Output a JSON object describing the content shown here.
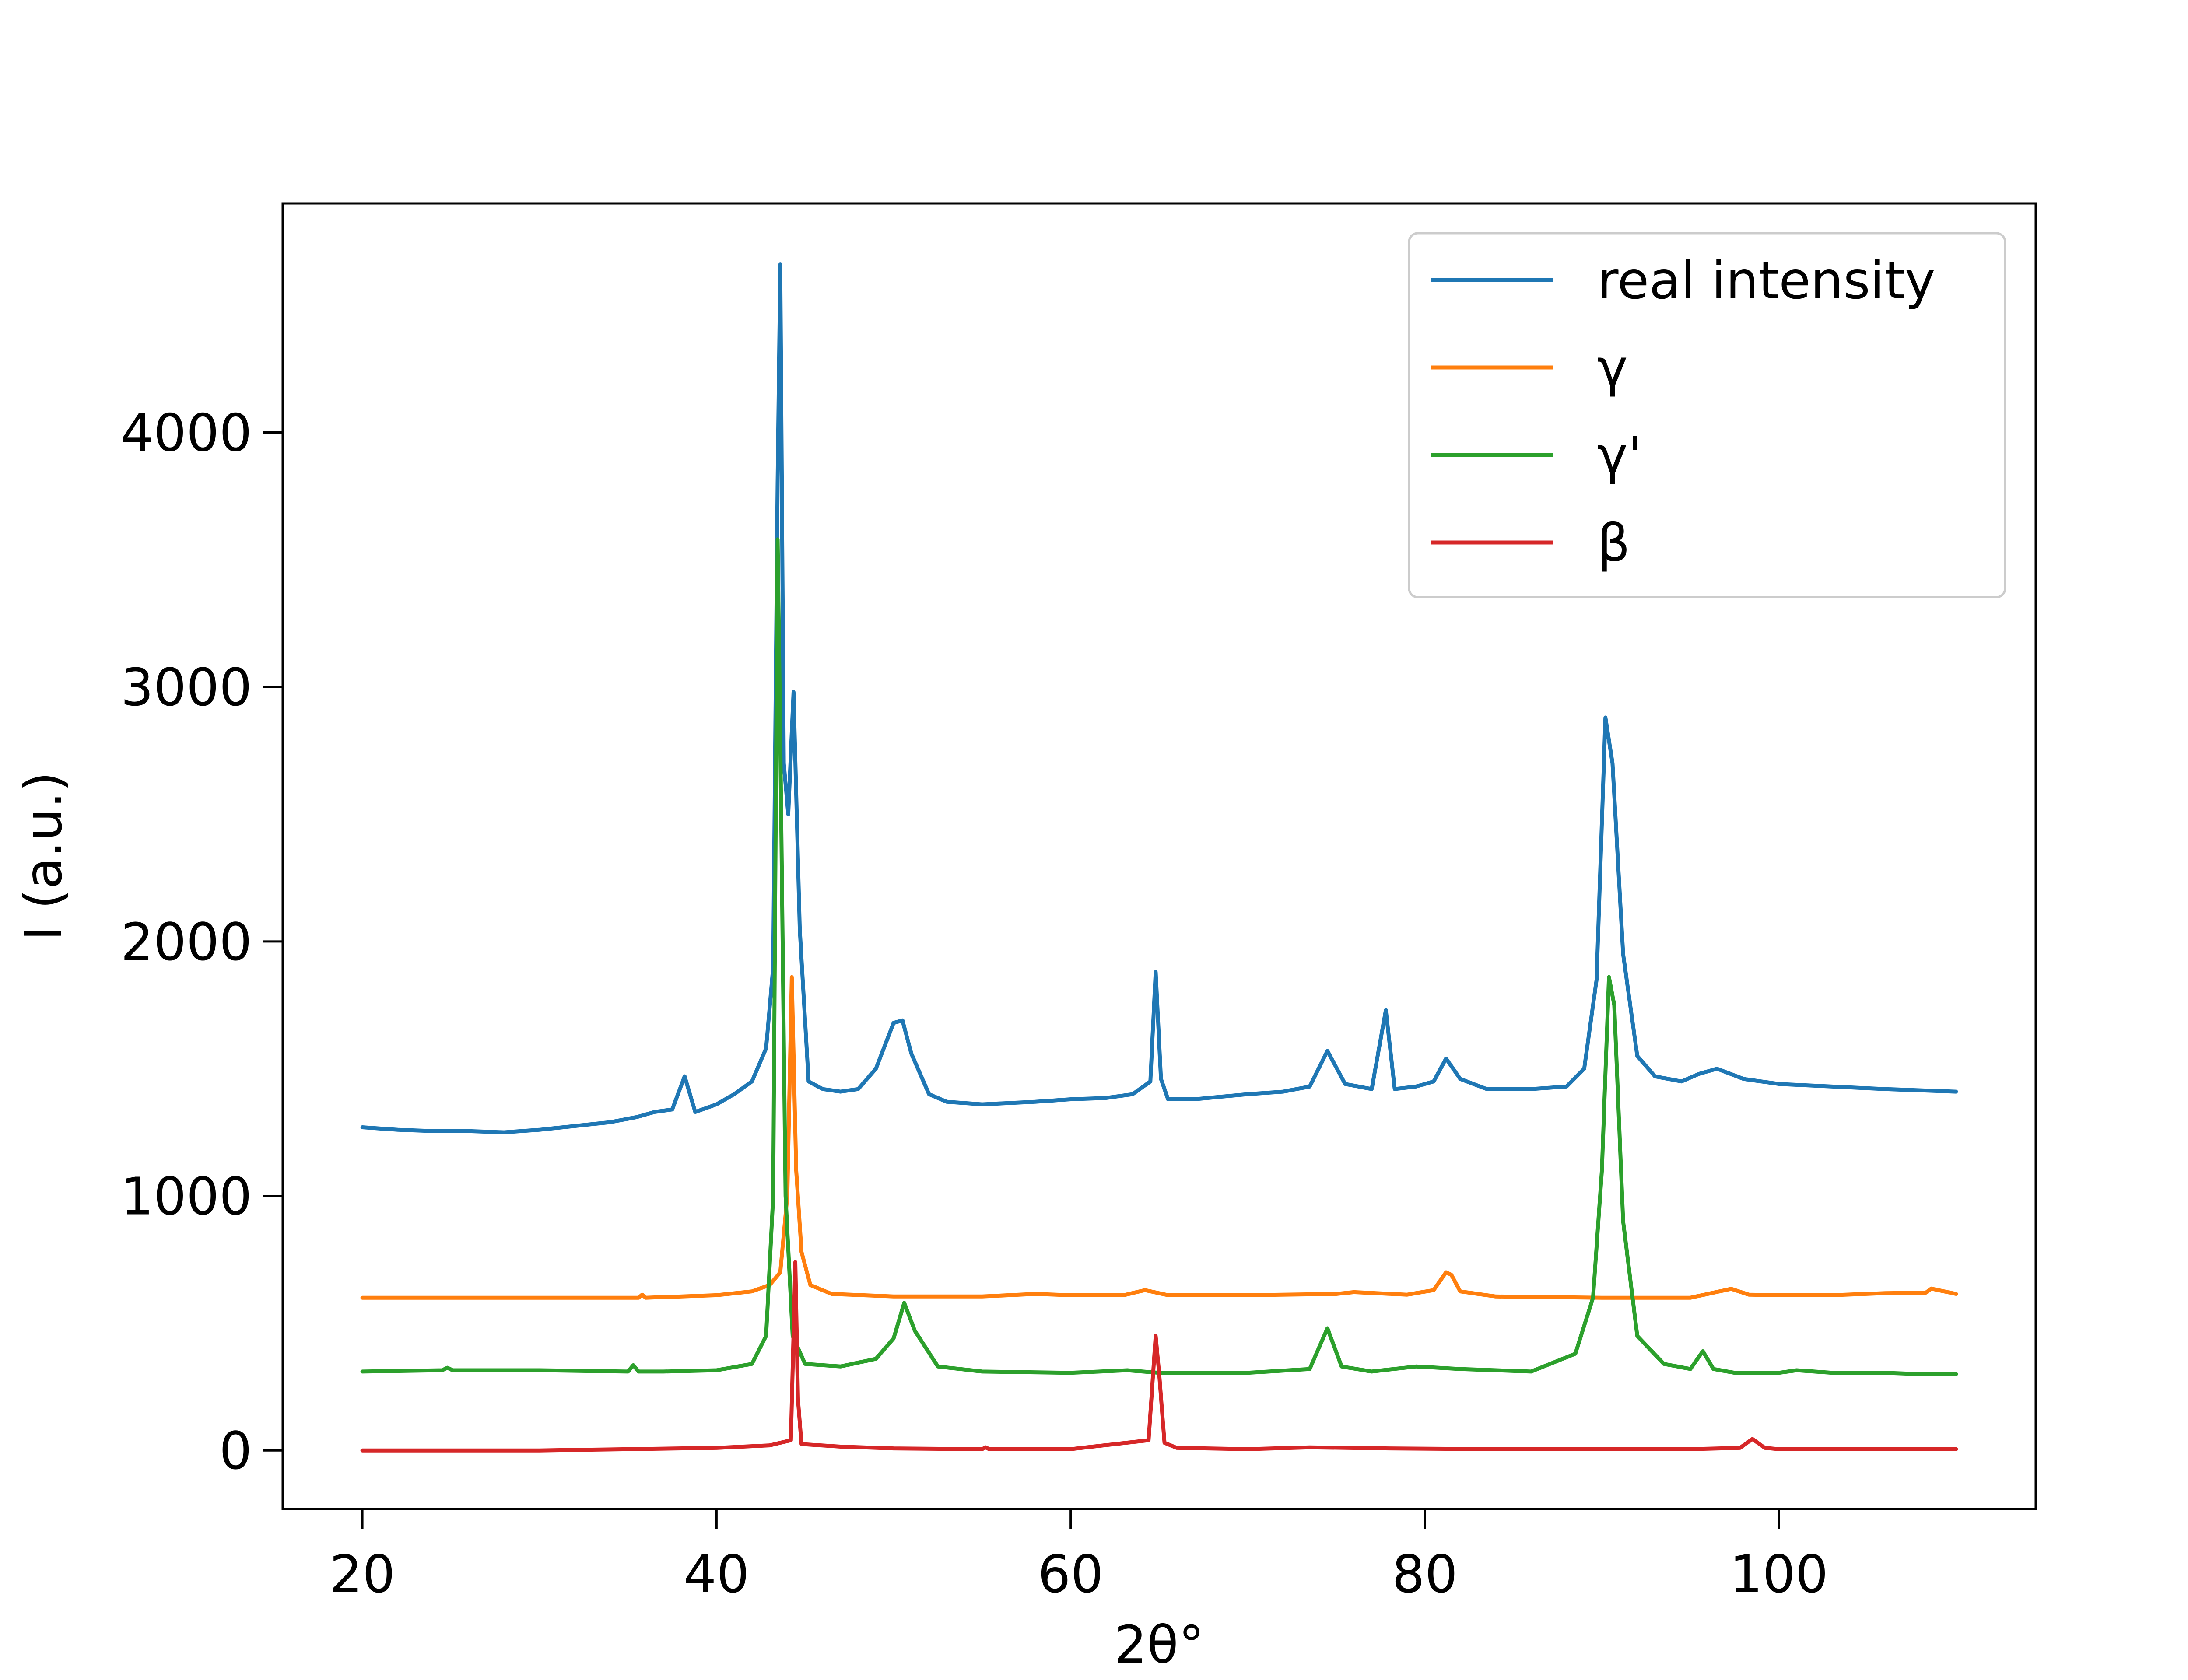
{
  "chart_data": {
    "type": "line",
    "title": "",
    "xlabel": "2θ°",
    "ylabel": "I (a.u.)",
    "xlim": [
      15.5,
      114.5
    ],
    "ylim": [
      -230,
      4900
    ],
    "xticks": [
      20,
      40,
      60,
      80,
      100
    ],
    "yticks": [
      0,
      1000,
      2000,
      3000,
      4000
    ],
    "grid": false,
    "legend_position": "top-right",
    "series": [
      {
        "name": "real intensity",
        "color": "#1f77b4",
        "x": [
          20,
          22,
          24,
          26,
          28,
          30,
          32,
          34,
          35.5,
          36.5,
          37.5,
          38.2,
          38.8,
          40,
          41,
          42,
          42.8,
          43.2,
          43.45,
          43.6,
          43.8,
          44.05,
          44.35,
          44.7,
          45.2,
          46,
          47,
          48,
          49,
          50,
          50.5,
          51,
          52,
          53,
          55,
          58,
          60,
          62,
          63.5,
          64.5,
          64.8,
          65.1,
          65.5,
          67,
          70,
          72,
          73.5,
          74.5,
          75.5,
          77,
          77.8,
          78.3,
          79.5,
          80.5,
          81.2,
          82,
          83.5,
          86,
          88,
          89,
          89.7,
          90.2,
          90.6,
          91.2,
          92,
          93,
          94.5,
          95.5,
          96.5,
          98,
          100,
          103,
          106,
          110
        ],
        "y": [
          1270,
          1260,
          1255,
          1255,
          1250,
          1260,
          1275,
          1290,
          1310,
          1330,
          1340,
          1470,
          1330,
          1360,
          1400,
          1450,
          1580,
          1900,
          3800,
          4660,
          2700,
          2500,
          2980,
          2050,
          1450,
          1420,
          1410,
          1420,
          1500,
          1680,
          1690,
          1560,
          1400,
          1370,
          1360,
          1370,
          1380,
          1385,
          1400,
          1450,
          1880,
          1460,
          1380,
          1380,
          1400,
          1410,
          1430,
          1570,
          1440,
          1420,
          1730,
          1420,
          1430,
          1450,
          1540,
          1460,
          1420,
          1420,
          1430,
          1500,
          1850,
          2880,
          2700,
          1950,
          1550,
          1470,
          1450,
          1480,
          1500,
          1460,
          1440,
          1430,
          1420,
          1410
        ]
      },
      {
        "name": "γ",
        "color": "#ff7f0e",
        "x": [
          20,
          30,
          35.6,
          35.8,
          36,
          40,
          42,
          43,
          43.6,
          44.0,
          44.25,
          44.5,
          44.8,
          45.3,
          46.5,
          50,
          55,
          58,
          60,
          63,
          64.2,
          65.5,
          70,
          75,
          76,
          79,
          80.5,
          81.2,
          81.5,
          82,
          84,
          90,
          95,
          97.3,
          98.3,
          100,
          103,
          106,
          108.3,
          108.6,
          110
        ],
        "y": [
          600,
          600,
          600,
          612,
          600,
          610,
          625,
          650,
          700,
          1000,
          1860,
          1100,
          780,
          650,
          615,
          605,
          605,
          615,
          610,
          610,
          630,
          610,
          610,
          615,
          622,
          612,
          630,
          700,
          690,
          625,
          605,
          600,
          600,
          635,
          612,
          610,
          610,
          618,
          620,
          636,
          615
        ]
      },
      {
        "name": "γ'",
        "color": "#2ca02c",
        "x": [
          20,
          24.5,
          24.8,
          25.1,
          30,
          35,
          35.3,
          35.6,
          37,
          40,
          42,
          42.8,
          43.2,
          43.45,
          43.6,
          43.9,
          44.3,
          45,
          47,
          49,
          50,
          50.6,
          51.2,
          52.5,
          55,
          60,
          63.2,
          65,
          70,
          73.5,
          74.5,
          75.3,
          77,
          79.5,
          82,
          86,
          88.5,
          89.5,
          90,
          90.4,
          90.7,
          91.2,
          92,
          93.5,
          95,
          95.7,
          96.3,
          97.5,
          100,
          101,
          103,
          106,
          108,
          110
        ],
        "y": [
          310,
          315,
          325,
          315,
          315,
          310,
          335,
          310,
          310,
          315,
          340,
          450,
          1000,
          3580,
          2800,
          1000,
          450,
          340,
          330,
          360,
          440,
          580,
          470,
          330,
          310,
          305,
          315,
          305,
          305,
          320,
          480,
          330,
          310,
          330,
          320,
          310,
          380,
          600,
          1100,
          1860,
          1750,
          900,
          450,
          340,
          320,
          390,
          320,
          305,
          305,
          315,
          305,
          305,
          300,
          300
        ]
      },
      {
        "name": "β",
        "color": "#d62728",
        "x": [
          20,
          30,
          40,
          43,
          44.2,
          44.45,
          44.6,
          44.8,
          47,
          50,
          55,
          55.2,
          55.4,
          60,
          64.4,
          64.8,
          65.0,
          65.3,
          66,
          70,
          73.5,
          78,
          82,
          95,
          97.8,
          98.5,
          99.2,
          100,
          105,
          110
        ],
        "y": [
          0,
          0,
          10,
          20,
          40,
          740,
          200,
          25,
          15,
          8,
          5,
          12,
          5,
          5,
          40,
          450,
          300,
          30,
          10,
          5,
          12,
          8,
          6,
          5,
          10,
          45,
          10,
          5,
          5,
          5
        ]
      }
    ]
  }
}
